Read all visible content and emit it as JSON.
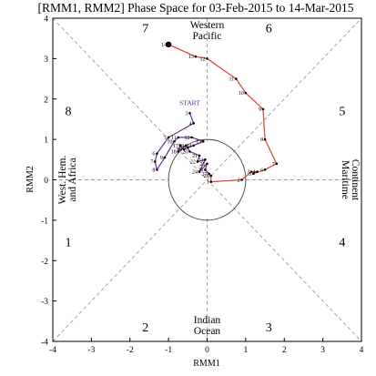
{
  "chart_data": {
    "type": "line",
    "title": "[RMM1, RMM2] Phase Space for 03-Feb-2015 to 14-Mar-2015",
    "xlabel": "RMM1",
    "ylabel": "RMM2",
    "xlim": [
      -4,
      4
    ],
    "ylim": [
      -4,
      4
    ],
    "x_ticks": [
      "-4",
      "-3",
      "-2",
      "-1",
      "0",
      "1",
      "2",
      "3",
      "4"
    ],
    "y_ticks": [
      "-4",
      "-3",
      "-2",
      "-1",
      "0",
      "1",
      "2",
      "3",
      "4"
    ],
    "grid": false,
    "phase_labels": [
      {
        "label": "1",
        "x": -3.6,
        "y": -1.65
      },
      {
        "label": "2",
        "x": -1.6,
        "y": -3.75
      },
      {
        "label": "3",
        "x": 1.6,
        "y": -3.75
      },
      {
        "label": "4",
        "x": 3.5,
        "y": -1.65
      },
      {
        "label": "5",
        "x": 3.5,
        "y": 1.6
      },
      {
        "label": "6",
        "x": 1.6,
        "y": 3.65
      },
      {
        "label": "7",
        "x": -1.6,
        "y": 3.65
      },
      {
        "label": "8",
        "x": -3.6,
        "y": 1.6
      }
    ],
    "region_labels": {
      "top": [
        "Western",
        "Pacific"
      ],
      "bottom": [
        "Indian",
        "Ocean"
      ],
      "left": [
        "West. Hem.",
        "and Africa"
      ],
      "right": [
        "Maritime",
        "Continent"
      ]
    },
    "start_label": "START",
    "series": [
      {
        "color": "#6a2c91",
        "points": [
          {
            "day": "3",
            "x": -0.45,
            "y": 1.65
          },
          {
            "day": "4",
            "x": -0.35,
            "y": 1.4
          },
          {
            "day": "5",
            "x": -1.0,
            "y": 1.05
          },
          {
            "day": "6",
            "x": -1.3,
            "y": 0.65
          },
          {
            "day": "7",
            "x": -1.35,
            "y": 0.45
          },
          {
            "day": "8",
            "x": -1.3,
            "y": 0.25
          },
          {
            "day": "9",
            "x": -1.1,
            "y": 0.55
          },
          {
            "day": "10",
            "x": -0.85,
            "y": 0.95
          },
          {
            "day": "11",
            "x": -0.75,
            "y": 1.05
          },
          {
            "day": "12",
            "x": -0.4,
            "y": 1.05
          },
          {
            "day": "13",
            "x": -0.1,
            "y": 0.95
          },
          {
            "day": "14",
            "x": -0.35,
            "y": 0.85
          },
          {
            "day": "15",
            "x": -0.5,
            "y": 0.8
          },
          {
            "day": "16",
            "x": -0.6,
            "y": 0.75
          },
          {
            "day": "17",
            "x": -0.7,
            "y": 0.85
          },
          {
            "day": "18",
            "x": -0.75,
            "y": 0.7
          },
          {
            "day": "19",
            "x": -0.55,
            "y": 0.85
          },
          {
            "day": "20",
            "x": -0.45,
            "y": 0.7
          },
          {
            "day": "21",
            "x": -0.2,
            "y": 0.6
          },
          {
            "day": "22",
            "x": -0.25,
            "y": 0.45
          },
          {
            "day": "23",
            "x": -0.05,
            "y": 0.5
          },
          {
            "day": "24",
            "x": -0.2,
            "y": 0.2
          },
          {
            "day": "25",
            "x": 0.0,
            "y": 0.4
          },
          {
            "day": "26",
            "x": -0.05,
            "y": 0.25
          },
          {
            "day": "27",
            "x": 0.05,
            "y": 0.15
          },
          {
            "day": "28",
            "x": 0.1,
            "y": 0.1
          }
        ]
      },
      {
        "color": "#e63c32",
        "points": [
          {
            "day": "1",
            "x": 0.1,
            "y": -0.05
          },
          {
            "day": "2",
            "x": 0.9,
            "y": 0.0
          },
          {
            "day": "3",
            "x": 1.15,
            "y": 0.2
          },
          {
            "day": "4",
            "x": 1.3,
            "y": 0.2
          },
          {
            "day": "5",
            "x": 1.2,
            "y": 0.15
          },
          {
            "day": "6",
            "x": 1.5,
            "y": 0.25
          },
          {
            "day": "7",
            "x": 1.8,
            "y": 0.4
          },
          {
            "day": "8",
            "x": 1.5,
            "y": 1.0
          },
          {
            "day": "9",
            "x": 1.45,
            "y": 1.75
          },
          {
            "day": "10",
            "x": 1.0,
            "y": 2.15
          },
          {
            "day": "11",
            "x": 0.75,
            "y": 2.5
          },
          {
            "day": "12",
            "x": 0.0,
            "y": 3.0
          },
          {
            "day": "13",
            "x": -0.3,
            "y": 3.05
          },
          {
            "day": "14",
            "x": -1.0,
            "y": 3.35
          }
        ]
      }
    ]
  }
}
